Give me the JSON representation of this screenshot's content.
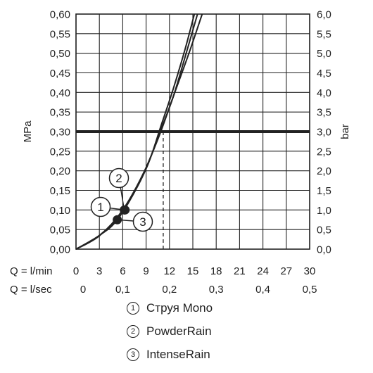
{
  "chart_data": {
    "type": "line",
    "ylabel_left": "MPa",
    "ylabel_right": "bar",
    "y_left_ticks": [
      "0,00",
      "0,05",
      "0,10",
      "0,15",
      "0,20",
      "0,25",
      "0,30",
      "0,35",
      "0,40",
      "0,45",
      "0,50",
      "0,55",
      "0,60"
    ],
    "y_right_ticks": [
      "0,0",
      "0,5",
      "1,0",
      "1,5",
      "2,0",
      "2,5",
      "3,0",
      "3,5",
      "4,0",
      "4,5",
      "5,0",
      "5,5",
      "6,0"
    ],
    "ylim": [
      0,
      0.6
    ],
    "xlim_lmin": [
      0,
      30
    ],
    "x_lmin_label": "Q = l/min",
    "x_lmin_ticks": [
      "0",
      "3",
      "6",
      "9",
      "12",
      "15",
      "18",
      "21",
      "24",
      "27",
      "30"
    ],
    "x_lsec_label": "Q = l/sec",
    "x_lsec_ticks": [
      "0",
      "0,1",
      "0,2",
      "0,3",
      "0,4",
      "0,5"
    ],
    "grid": true,
    "reference_line": {
      "pressure_mpa": 0.3,
      "flow_lmin": 11.2
    },
    "series": [
      {
        "name": "Струя Mono",
        "marker": "1",
        "x": [
          0,
          3,
          6,
          9,
          11,
          12.5,
          14,
          15.2
        ],
        "y": [
          0,
          0.035,
          0.097,
          0.205,
          0.32,
          0.41,
          0.51,
          0.6
        ],
        "callout_point": [
          6.3,
          0.1
        ]
      },
      {
        "name": "PowderRain",
        "marker": "2",
        "x": [
          0,
          3,
          6,
          9,
          11,
          12.5,
          14,
          15.6
        ],
        "y": [
          0,
          0.034,
          0.1,
          0.208,
          0.31,
          0.39,
          0.49,
          0.6
        ],
        "callout_point": [
          6.2,
          0.1
        ]
      },
      {
        "name": "IntenseRain",
        "marker": "3",
        "x": [
          0,
          3,
          5.3,
          8,
          10.5,
          12.5,
          14.5,
          16.2
        ],
        "y": [
          0,
          0.035,
          0.075,
          0.165,
          0.28,
          0.39,
          0.5,
          0.6
        ],
        "callout_point": [
          5.3,
          0.075
        ]
      }
    ]
  },
  "legend": {
    "items": [
      {
        "num": "1",
        "label": "Струя Mono"
      },
      {
        "num": "2",
        "label": "PowderRain"
      },
      {
        "num": "3",
        "label": "IntenseRain"
      }
    ]
  },
  "colors": {
    "axis": "#222222",
    "grid": "#222222",
    "series": "#222222",
    "reference": "#222222"
  }
}
